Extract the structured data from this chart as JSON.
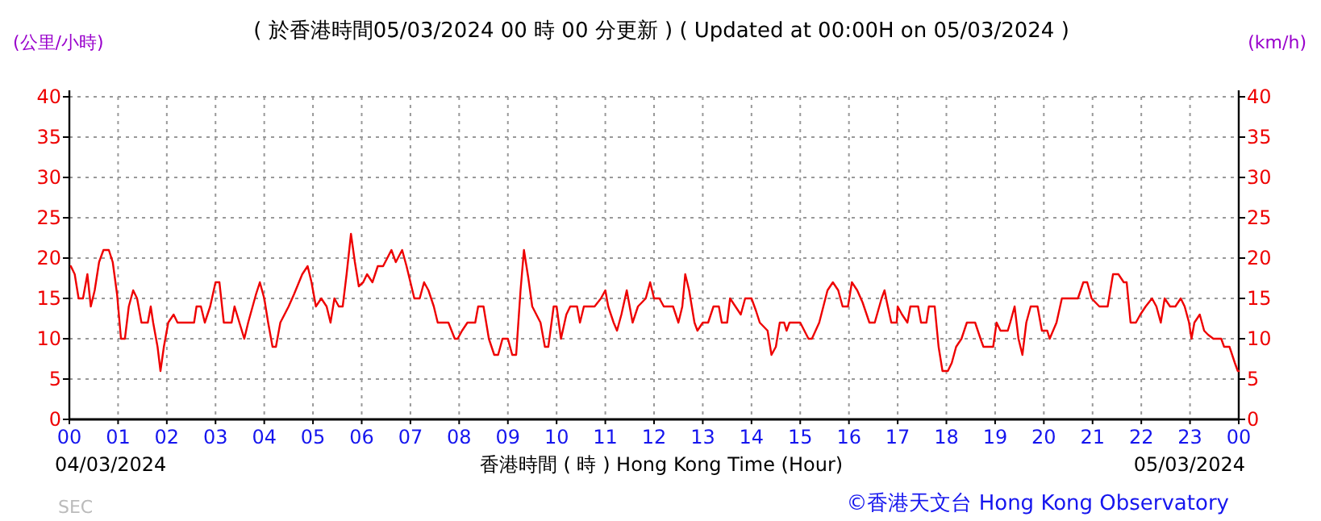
{
  "chart_data": {
    "type": "line",
    "title": "( 於香港時間05/03/2024 00 時 00 分更新 ) ( Updated at 00:00H on 05/03/2024 )",
    "ylabel": "(公里/小時)",
    "y2label": "(km/h)",
    "xlabel": "香港時間 ( 時 ) Hong Kong Time (Hour)",
    "annotations": [
      "04/03/2024",
      "05/03/2024",
      "SEC",
      "©香港天文台 Hong Kong Observatory"
    ],
    "xlim": [
      0,
      24
    ],
    "ylim": [
      0,
      40
    ],
    "y2lim": [
      0,
      40
    ],
    "xticks": [
      {
        "value": 0,
        "label": "00"
      },
      {
        "value": 1,
        "label": "01"
      },
      {
        "value": 2,
        "label": "02"
      },
      {
        "value": 3,
        "label": "03"
      },
      {
        "value": 4,
        "label": "04"
      },
      {
        "value": 5,
        "label": "05"
      },
      {
        "value": 6,
        "label": "06"
      },
      {
        "value": 7,
        "label": "07"
      },
      {
        "value": 8,
        "label": "08"
      },
      {
        "value": 9,
        "label": "09"
      },
      {
        "value": 10,
        "label": "10"
      },
      {
        "value": 11,
        "label": "11"
      },
      {
        "value": 12,
        "label": "12"
      },
      {
        "value": 13,
        "label": "13"
      },
      {
        "value": 14,
        "label": "14"
      },
      {
        "value": 15,
        "label": "15"
      },
      {
        "value": 16,
        "label": "16"
      },
      {
        "value": 17,
        "label": "17"
      },
      {
        "value": 18,
        "label": "18"
      },
      {
        "value": 19,
        "label": "19"
      },
      {
        "value": 20,
        "label": "20"
      },
      {
        "value": 21,
        "label": "21"
      },
      {
        "value": 22,
        "label": "22"
      },
      {
        "value": 23,
        "label": "23"
      },
      {
        "value": 24,
        "label": "00"
      }
    ],
    "yticks": [
      0,
      5,
      10,
      15,
      20,
      25,
      30,
      35,
      40
    ],
    "y2ticks": [
      0,
      5,
      10,
      15,
      20,
      25,
      30,
      35,
      40
    ],
    "grid": true,
    "series": [
      {
        "color": "#ee0000",
        "x": [
          0.03,
          0.11,
          0.19,
          0.28,
          0.37,
          0.44,
          0.52,
          0.61,
          0.7,
          0.81,
          0.89,
          0.98,
          1.06,
          1.14,
          1.22,
          1.31,
          1.39,
          1.48,
          1.61,
          1.67,
          1.72,
          1.81,
          1.87,
          1.94,
          2.03,
          2.14,
          2.22,
          2.56,
          2.61,
          2.7,
          2.78,
          2.89,
          3.0,
          3.08,
          3.17,
          3.33,
          3.39,
          3.59,
          3.67,
          3.83,
          3.91,
          4.0,
          4.08,
          4.17,
          4.24,
          4.33,
          4.5,
          4.61,
          4.78,
          4.89,
          4.97,
          5.06,
          5.17,
          5.28,
          5.36,
          5.44,
          5.53,
          5.61,
          5.69,
          5.78,
          5.86,
          5.94,
          6.03,
          6.11,
          6.22,
          6.33,
          6.44,
          6.61,
          6.7,
          6.83,
          6.92,
          7.08,
          7.19,
          7.28,
          7.37,
          7.48,
          7.56,
          7.78,
          7.91,
          7.97,
          8.06,
          8.17,
          8.33,
          8.39,
          8.5,
          8.61,
          8.72,
          8.8,
          8.89,
          9.0,
          9.09,
          9.17,
          9.26,
          9.33,
          9.42,
          9.5,
          9.67,
          9.76,
          9.83,
          9.94,
          10.0,
          10.09,
          10.2,
          10.28,
          10.42,
          10.48,
          10.56,
          10.78,
          10.91,
          11.0,
          11.06,
          11.17,
          11.24,
          11.33,
          11.44,
          11.56,
          11.67,
          11.83,
          11.92,
          12.0,
          12.11,
          12.2,
          12.39,
          12.5,
          12.58,
          12.64,
          12.72,
          12.83,
          12.89,
          13.0,
          13.11,
          13.22,
          13.33,
          13.39,
          13.5,
          13.56,
          13.67,
          13.78,
          13.87,
          14.0,
          14.09,
          14.17,
          14.33,
          14.41,
          14.5,
          14.58,
          14.67,
          14.72,
          14.78,
          15.0,
          15.17,
          15.24,
          15.39,
          15.56,
          15.67,
          15.78,
          15.87,
          15.98,
          16.06,
          16.17,
          16.28,
          16.42,
          16.53,
          16.67,
          16.73,
          16.78,
          16.87,
          16.98,
          17.0,
          17.09,
          17.2,
          17.26,
          17.42,
          17.48,
          17.59,
          17.64,
          17.76,
          17.84,
          17.92,
          18.03,
          18.11,
          18.2,
          18.31,
          18.42,
          18.59,
          18.7,
          18.76,
          18.96,
          19.03,
          19.11,
          19.26,
          19.31,
          19.4,
          19.48,
          19.56,
          19.64,
          19.73,
          19.87,
          19.96,
          20.07,
          20.12,
          20.26,
          20.37,
          20.59,
          20.7,
          20.81,
          20.89,
          20.98,
          21.14,
          21.31,
          21.42,
          21.53,
          21.64,
          21.7,
          21.78,
          21.89,
          21.98,
          22.09,
          22.22,
          22.31,
          22.4,
          22.48,
          22.59,
          22.7,
          22.81,
          22.89,
          22.98,
          23.03,
          23.09,
          23.2,
          23.29,
          23.37,
          23.48,
          23.64,
          23.7,
          23.81,
          23.92,
          23.98,
          24.0
        ],
        "values": [
          19,
          18,
          15,
          15,
          18,
          14,
          16,
          19.5,
          21,
          21,
          19.5,
          15.5,
          10,
          10,
          14,
          16,
          15,
          12,
          12,
          14,
          12,
          9,
          6,
          9,
          12,
          13,
          12,
          12,
          14,
          14,
          12,
          14,
          17,
          17,
          12,
          12,
          14,
          10,
          12,
          15.5,
          17,
          15,
          12,
          9,
          9,
          12,
          14,
          15.5,
          18,
          19,
          17,
          14,
          15,
          14,
          12,
          15,
          14,
          14,
          18,
          23,
          19.5,
          16.5,
          17,
          18,
          17,
          19,
          19,
          21,
          19.5,
          21,
          19,
          15,
          15,
          17,
          16,
          14,
          12,
          12,
          10,
          10,
          11,
          12,
          12,
          14,
          14,
          10,
          8,
          8,
          10,
          10,
          8,
          8,
          16,
          21,
          17.5,
          14,
          12,
          9,
          9,
          14,
          14,
          10,
          13,
          14,
          14,
          12,
          14,
          14,
          15,
          16,
          14,
          12,
          11,
          13,
          16,
          12,
          14,
          15,
          17,
          15,
          15,
          14,
          14,
          12,
          14,
          18,
          16,
          12,
          11,
          12,
          12,
          14,
          14,
          12,
          12,
          15,
          14,
          13,
          15,
          15,
          13.5,
          12,
          11,
          8,
          9,
          12,
          12,
          11,
          12,
          12,
          10,
          10,
          12,
          16,
          17,
          16,
          14,
          14,
          17,
          16,
          14.5,
          12,
          12,
          15,
          16,
          14.5,
          12,
          12,
          14,
          13,
          12,
          14,
          14,
          12,
          12,
          14,
          14,
          9,
          6,
          6,
          7,
          9,
          10,
          12,
          12,
          10,
          9,
          9,
          12,
          11,
          11,
          12,
          14,
          10,
          8,
          12,
          14,
          14,
          11,
          11,
          10,
          12,
          15,
          15,
          15,
          17,
          17,
          15,
          14,
          14,
          18,
          18,
          17,
          17,
          12,
          12,
          13,
          14,
          15,
          14,
          12,
          15,
          14,
          14,
          15,
          14,
          12,
          10,
          12,
          13,
          11,
          10.5,
          10,
          10,
          9,
          9,
          7,
          6,
          6
        ]
      }
    ]
  }
}
